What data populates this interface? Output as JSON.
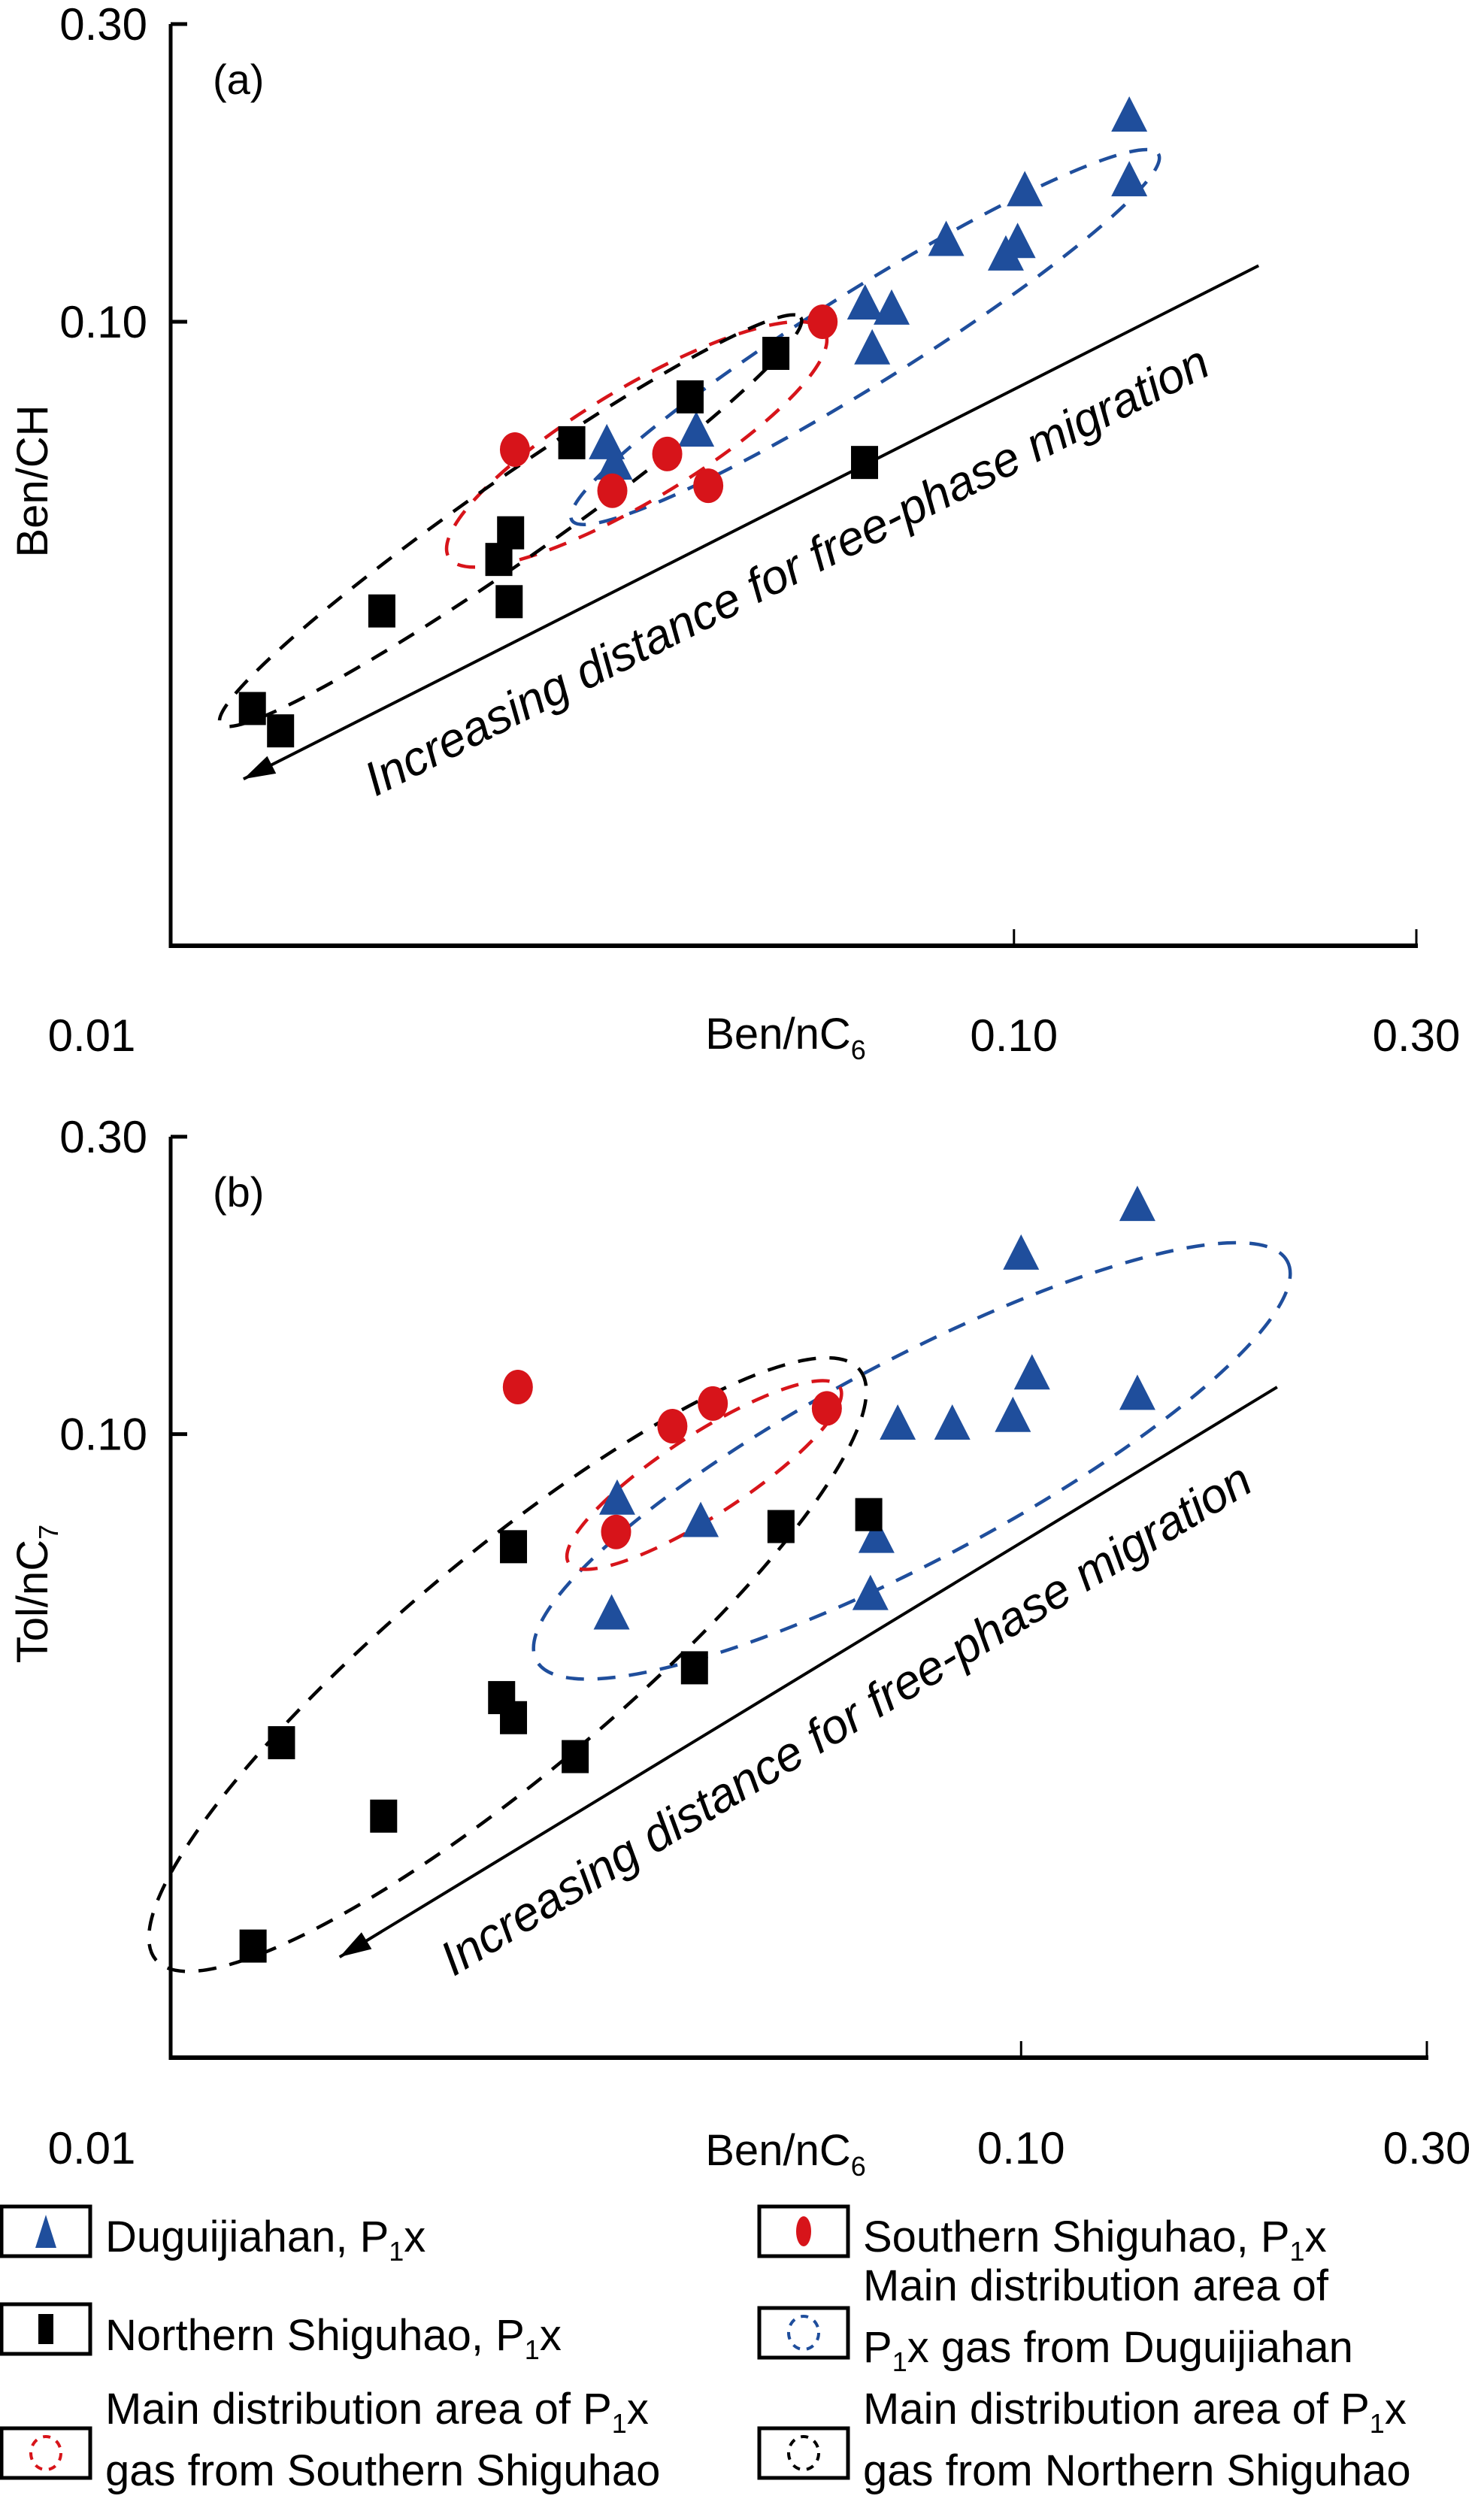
{
  "chart_data": [
    {
      "type": "scatter",
      "panel_label": "(a)",
      "xlabel": "Ben/nC",
      "xlabel_sub": "6",
      "ylabel": "Ben/CH",
      "ylabel_sub": "",
      "xscale": "log",
      "yscale": "log",
      "xlim": [
        0.01,
        0.3
      ],
      "ylim": [
        0.01,
        0.3
      ],
      "xticks": [
        0.01,
        0.1,
        0.3
      ],
      "xtick_labels": [
        "0.01",
        "0.10",
        "0.30"
      ],
      "yticks": [
        0.1,
        0.3
      ],
      "ytick_labels": [
        "0.10",
        "0.30"
      ],
      "grid": false,
      "annotation": {
        "text": "Increasing distance for free-phase migration",
        "arrow_from": [
          0.195,
          0.123
        ],
        "arrow_to": [
          0.0122,
          0.0185
        ]
      },
      "series": [
        {
          "name": "Duguijiahan, P1x",
          "marker": "triangle",
          "color": "#1f4e9c",
          "points": [
            [
              0.0329,
              0.0633
            ],
            [
              0.0336,
              0.0587
            ],
            [
              0.042,
              0.0663
            ],
            [
              0.137,
              0.212
            ],
            [
              0.137,
              0.167
            ],
            [
              0.103,
              0.161
            ],
            [
              0.0831,
              0.134
            ],
            [
              0.101,
              0.133
            ],
            [
              0.0978,
              0.127
            ],
            [
              0.0666,
              0.106
            ],
            [
              0.0716,
              0.104
            ],
            [
              0.0679,
              0.0898
            ]
          ]
        },
        {
          "name": "Southern Shiguhao, P1x",
          "marker": "circle",
          "color": "#d7141a",
          "points": [
            [
              0.0593,
              0.1
            ],
            [
              0.0256,
              0.0624
            ],
            [
              0.0388,
              0.0614
            ],
            [
              0.0334,
              0.0536
            ],
            [
              0.0434,
              0.0546
            ]
          ]
        },
        {
          "name": "Northern Shiguhao, P1x",
          "marker": "square",
          "color": "#000000",
          "points": [
            [
              0.0522,
              0.089
            ],
            [
              0.0413,
              0.0758
            ],
            [
              0.0299,
              0.064
            ],
            [
              0.0253,
              0.0459
            ],
            [
              0.0245,
              0.0416
            ],
            [
              0.0252,
              0.0356
            ],
            [
              0.0178,
              0.0344
            ],
            [
              0.0125,
              0.024
            ],
            [
              0.0135,
              0.0221
            ],
            [
              0.0665,
              0.0595
            ]
          ]
        }
      ],
      "regions": [
        {
          "name": "Main distribution area of P1x gas from Duguijiahan",
          "color": "#1f4e9c",
          "center": [
            0.0666,
            0.0945
          ],
          "rotate_deg": -32,
          "rx_decades": 0.41,
          "ry_decades": 0.075
        },
        {
          "name": "Main distribution area of P1x gas from Southern Shiguhao",
          "color": "#d7141a",
          "center": [
            0.0357,
            0.0636
          ],
          "rotate_deg": -31,
          "rx_decades": 0.26,
          "ry_decades": 0.09
        },
        {
          "name": "Main distribution area of P1x gas from Northern Shiguhao",
          "color": "#000000",
          "center": [
            0.0253,
            0.048
          ],
          "rotate_deg": -35,
          "rx_decades": 0.42,
          "ry_decades": 0.065
        }
      ]
    },
    {
      "type": "scatter",
      "panel_label": "(b)",
      "xlabel": "Ben/nC",
      "xlabel_sub": "6",
      "ylabel": "Tol/nC",
      "ylabel_sub": "7",
      "xscale": "log",
      "yscale": "log",
      "xlim": [
        0.01,
        0.3
      ],
      "ylim": [
        0.01,
        0.3
      ],
      "xticks": [
        0.01,
        0.1,
        0.3
      ],
      "xtick_labels": [
        "0.01",
        "0.10",
        "0.30"
      ],
      "yticks": [
        0.1,
        0.3
      ],
      "ytick_labels": [
        "0.10",
        "0.30"
      ],
      "grid": false,
      "annotation": {
        "text": "Increasing distance for free-phase migration",
        "arrow_from": [
          0.2,
          0.119
        ],
        "arrow_to": [
          0.0158,
          0.0145
        ]
      },
      "series": [
        {
          "name": "Duguijiahan, P1x",
          "marker": "triangle",
          "color": "#1f4e9c",
          "points": [
            [
              0.0335,
              0.0781
            ],
            [
              0.042,
              0.0719
            ],
            [
              0.0676,
              0.0678
            ],
            [
              0.0665,
              0.0549
            ],
            [
              0.033,
              0.0511
            ],
            [
              0.0716,
              0.103
            ],
            [
              0.137,
              0.231
            ],
            [
              0.1,
              0.193
            ],
            [
              0.103,
              0.124
            ],
            [
              0.137,
              0.115
            ],
            [
              0.083,
              0.103
            ],
            [
              0.0978,
              0.106
            ]
          ]
        },
        {
          "name": "Southern Shiguhao, P1x",
          "marker": "circle",
          "color": "#d7141a",
          "points": [
            [
              0.0256,
              0.119
            ],
            [
              0.0389,
              0.103
            ],
            [
              0.0434,
              0.112
            ],
            [
              0.0591,
              0.11
            ],
            [
              0.0334,
              0.0697
            ]
          ]
        },
        {
          "name": "Northern Shiguhao, P1x",
          "marker": "square",
          "color": "#000000",
          "points": [
            [
              0.0253,
              0.066
            ],
            [
              0.0522,
              0.0711
            ],
            [
              0.0662,
              0.0743
            ],
            [
              0.0413,
              0.0422
            ],
            [
              0.0245,
              0.0378
            ],
            [
              0.0253,
              0.0351
            ],
            [
              0.0299,
              0.0304
            ],
            [
              0.0135,
              0.032
            ],
            [
              0.0178,
              0.0244
            ],
            [
              0.0125,
              0.0151
            ]
          ]
        }
      ],
      "regions": [
        {
          "name": "Main distribution area of P1x gas from Duguijiahan",
          "color": "#1f4e9c",
          "center": [
            0.0744,
            0.0906
          ],
          "rotate_deg": -28,
          "rx_decades": 0.5,
          "ry_decades": 0.16
        },
        {
          "name": "Main distribution area of P1x gas from Southern Shiguhao",
          "color": "#d7141a",
          "center": [
            0.0424,
            0.086
          ],
          "rotate_deg": -33,
          "rx_decades": 0.19,
          "ry_decades": 0.065
        },
        {
          "name": "Main distribution area of P1x gas from Northern Shiguhao",
          "color": "#000000",
          "center": [
            0.0249,
            0.0427
          ],
          "rotate_deg": -40,
          "rx_decades": 0.54,
          "ry_decades": 0.175
        }
      ]
    }
  ],
  "legend": {
    "items": [
      {
        "key": "triangle",
        "color": "#1f4e9c",
        "lines": [
          [
            "Duguijiahan, P",
            "1",
            "x"
          ]
        ]
      },
      {
        "key": "circle",
        "color": "#d7141a",
        "lines": [
          [
            "Southern Shiguhao, P",
            "1",
            "x"
          ]
        ]
      },
      {
        "key": "square",
        "color": "#000000",
        "lines": [
          [
            "Northern Shiguhao, P",
            "1",
            "x"
          ]
        ]
      },
      {
        "key": "ellipse",
        "color": "#1f4e9c",
        "lines": [
          [
            "Main distribution area of",
            "",
            ""
          ],
          [
            "P",
            "1",
            "x gas from Duguijiahan"
          ]
        ]
      },
      {
        "key": "ellipse",
        "color": "#d7141a",
        "lines": [
          [
            "Main distribution area of P",
            "1",
            "x"
          ],
          [
            "gas from Southern Shiguhao",
            "",
            ""
          ]
        ]
      },
      {
        "key": "ellipse",
        "color": "#000000",
        "lines": [
          [
            "Main distribution area of P",
            "1",
            "x"
          ],
          [
            "gas from Northern Shiguhao",
            "",
            ""
          ]
        ]
      }
    ]
  }
}
